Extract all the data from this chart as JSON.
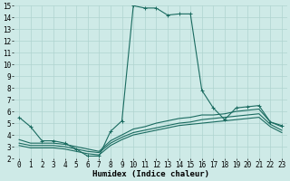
{
  "xlabel": "Humidex (Indice chaleur)",
  "bg_color": "#ceeae7",
  "grid_color": "#afd4d0",
  "line_color": "#1a6b60",
  "xlim": [
    -0.5,
    23.5
  ],
  "ylim": [
    2,
    15
  ],
  "xticks": [
    0,
    1,
    2,
    3,
    4,
    5,
    6,
    7,
    8,
    9,
    10,
    11,
    12,
    13,
    14,
    15,
    16,
    17,
    18,
    19,
    20,
    21,
    22,
    23
  ],
  "yticks": [
    2,
    3,
    4,
    5,
    6,
    7,
    8,
    9,
    10,
    11,
    12,
    13,
    14,
    15
  ],
  "lines": [
    {
      "x": [
        0,
        1,
        2,
        3,
        4,
        5,
        6,
        7,
        8,
        9,
        10,
        11,
        12,
        13,
        14,
        15,
        16,
        17,
        18,
        19,
        20,
        21,
        22,
        23
      ],
      "y": [
        5.5,
        4.7,
        3.5,
        3.5,
        3.3,
        2.8,
        2.2,
        2.2,
        4.3,
        5.2,
        15.0,
        14.8,
        14.8,
        14.2,
        14.3,
        14.3,
        7.8,
        6.3,
        5.3,
        6.3,
        6.4,
        6.5,
        5.1,
        4.8
      ],
      "marker": "+"
    },
    {
      "x": [
        0,
        1,
        2,
        3,
        4,
        5,
        6,
        7,
        8,
        9,
        10,
        11,
        12,
        13,
        14,
        15,
        16,
        17,
        18,
        19,
        20,
        21,
        22,
        23
      ],
      "y": [
        3.6,
        3.3,
        3.3,
        3.3,
        3.2,
        3.0,
        2.8,
        2.6,
        3.5,
        4.0,
        4.5,
        4.7,
        5.0,
        5.2,
        5.4,
        5.5,
        5.7,
        5.7,
        5.8,
        6.0,
        6.1,
        6.2,
        5.1,
        4.7
      ],
      "marker": null
    },
    {
      "x": [
        0,
        1,
        2,
        3,
        4,
        5,
        6,
        7,
        8,
        9,
        10,
        11,
        12,
        13,
        14,
        15,
        16,
        17,
        18,
        19,
        20,
        21,
        22,
        23
      ],
      "y": [
        3.3,
        3.1,
        3.1,
        3.1,
        3.0,
        2.8,
        2.6,
        2.5,
        3.3,
        3.8,
        4.2,
        4.4,
        4.6,
        4.8,
        5.0,
        5.1,
        5.3,
        5.4,
        5.5,
        5.6,
        5.7,
        5.8,
        4.9,
        4.4
      ],
      "marker": null
    },
    {
      "x": [
        0,
        1,
        2,
        3,
        4,
        5,
        6,
        7,
        8,
        9,
        10,
        11,
        12,
        13,
        14,
        15,
        16,
        17,
        18,
        19,
        20,
        21,
        22,
        23
      ],
      "y": [
        3.1,
        2.9,
        2.9,
        2.9,
        2.8,
        2.6,
        2.4,
        2.3,
        3.1,
        3.6,
        4.0,
        4.2,
        4.4,
        4.6,
        4.8,
        4.9,
        5.0,
        5.1,
        5.2,
        5.3,
        5.4,
        5.5,
        4.7,
        4.2
      ],
      "marker": null
    }
  ],
  "font_family": "monospace",
  "xlabel_fontsize": 6.5,
  "tick_fontsize": 5.5
}
